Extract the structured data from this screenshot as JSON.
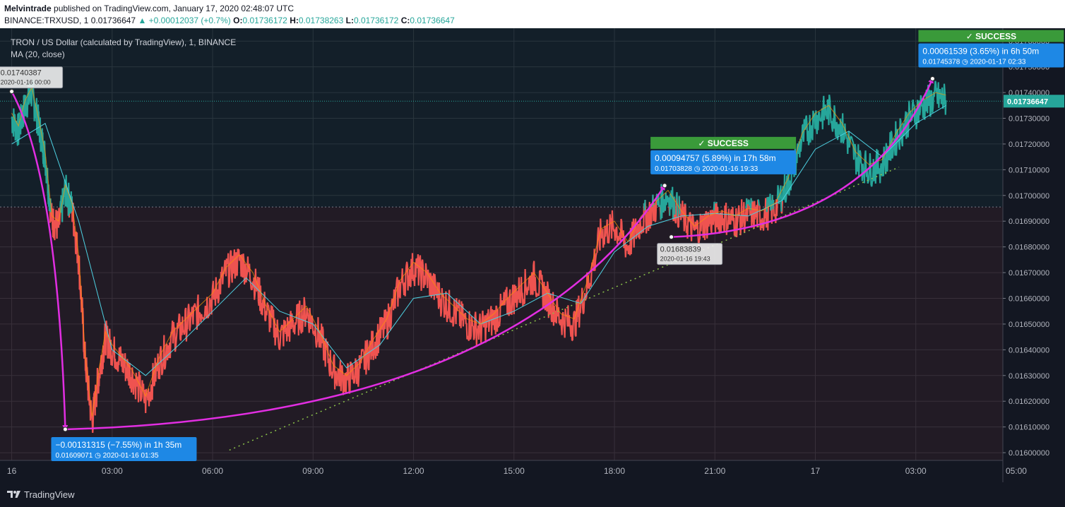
{
  "header": {
    "author": "Melvintrade",
    "published": "published on TradingView.com, January 17, 2020 02:48:07 UTC",
    "symbol": "BINANCE:TRXUSD, 1",
    "last": "0.01736647",
    "change": "▲ +0.00012037 (+0.7%)",
    "o_label": "O:",
    "o": "0.01736172",
    "h_label": "H:",
    "h": "0.01738263",
    "l_label": "L:",
    "l": "0.01736172",
    "c_label": "C:",
    "c": "0.01736647"
  },
  "legend": {
    "title": "TRON / US Dollar (calculated by TradingView), 1, BINANCE",
    "ma": "MA (20, close)"
  },
  "footer": {
    "brand": "TradingView",
    "logo_icon": "tradingview-logo-icon"
  },
  "colors": {
    "background": "#131722",
    "up": "#26a69a",
    "down": "#ef5350",
    "arrow": "#e22ee2",
    "ma_blue": "#4dd0e1",
    "ma_orange": "#ff9800",
    "success": "#3a9a3a",
    "measure": "#1e88e5",
    "trend": "#8bc34a"
  },
  "chart_data": {
    "type": "line",
    "x_ticks": [
      "16",
      "03:00",
      "06:00",
      "09:00",
      "12:00",
      "15:00",
      "18:00",
      "21:00",
      "17",
      "03:00",
      "05:00"
    ],
    "y_ticks": [
      "0.01760000",
      "0.01750000",
      "0.01740000",
      "0.01730000",
      "0.01720000",
      "0.01710000",
      "0.01700000",
      "0.01690000",
      "0.01680000",
      "0.01670000",
      "0.01660000",
      "0.01650000",
      "0.01640000",
      "0.01630000",
      "0.01620000",
      "0.01610000",
      "0.01600000"
    ],
    "ylim": [
      0.01597,
      0.01765
    ],
    "xlim_hours": [
      -0.35,
      29.6
    ],
    "last_price": "0.01736647",
    "reference_price": 0.016955,
    "series": [
      {
        "name": "TRX/USD",
        "points": [
          [
            0.0,
            0.0173
          ],
          [
            0.2,
            0.01725
          ],
          [
            0.4,
            0.01735
          ],
          [
            0.6,
            0.0174
          ],
          [
            0.8,
            0.01728
          ],
          [
            1.0,
            0.01715
          ],
          [
            1.2,
            0.0169
          ],
          [
            1.4,
            0.01688
          ],
          [
            1.6,
            0.01702
          ],
          [
            1.8,
            0.01695
          ],
          [
            2.0,
            0.01675
          ],
          [
            2.2,
            0.01635
          ],
          [
            2.4,
            0.01612
          ],
          [
            2.6,
            0.0163
          ],
          [
            2.8,
            0.01645
          ],
          [
            3.0,
            0.0164
          ],
          [
            3.3,
            0.01635
          ],
          [
            3.6,
            0.0163
          ],
          [
            4.0,
            0.0162
          ],
          [
            4.4,
            0.01635
          ],
          [
            4.8,
            0.01645
          ],
          [
            5.2,
            0.0165
          ],
          [
            5.6,
            0.01655
          ],
          [
            6.0,
            0.0166
          ],
          [
            6.4,
            0.0167
          ],
          [
            6.8,
            0.01675
          ],
          [
            7.2,
            0.01668
          ],
          [
            7.6,
            0.01655
          ],
          [
            8.0,
            0.01645
          ],
          [
            8.4,
            0.0165
          ],
          [
            8.8,
            0.01655
          ],
          [
            9.2,
            0.01645
          ],
          [
            9.6,
            0.01632
          ],
          [
            10.0,
            0.01628
          ],
          [
            10.4,
            0.01633
          ],
          [
            10.8,
            0.01642
          ],
          [
            11.2,
            0.0165
          ],
          [
            11.6,
            0.01665
          ],
          [
            12.0,
            0.01672
          ],
          [
            12.4,
            0.01668
          ],
          [
            12.8,
            0.0166
          ],
          [
            13.2,
            0.01655
          ],
          [
            13.6,
            0.0165
          ],
          [
            14.0,
            0.01648
          ],
          [
            14.4,
            0.01652
          ],
          [
            14.8,
            0.01658
          ],
          [
            15.2,
            0.01663
          ],
          [
            15.6,
            0.01668
          ],
          [
            16.0,
            0.0166
          ],
          [
            16.4,
            0.01652
          ],
          [
            16.8,
            0.0165
          ],
          [
            17.2,
            0.01665
          ],
          [
            17.6,
            0.01685
          ],
          [
            18.0,
            0.01688
          ],
          [
            18.4,
            0.0168
          ],
          [
            18.8,
            0.0169
          ],
          [
            19.2,
            0.01695
          ],
          [
            19.6,
            0.017
          ],
          [
            20.0,
            0.01692
          ],
          [
            20.4,
            0.01686
          ],
          [
            20.8,
            0.0169
          ],
          [
            21.2,
            0.01692
          ],
          [
            21.6,
            0.0169
          ],
          [
            22.0,
            0.01693
          ],
          [
            22.4,
            0.01692
          ],
          [
            22.8,
            0.01695
          ],
          [
            23.2,
            0.01705
          ],
          [
            23.6,
            0.01722
          ],
          [
            24.0,
            0.0173
          ],
          [
            24.4,
            0.01733
          ],
          [
            24.8,
            0.01726
          ],
          [
            25.2,
            0.01715
          ],
          [
            25.6,
            0.0171
          ],
          [
            26.0,
            0.01712
          ],
          [
            26.4,
            0.01722
          ],
          [
            26.8,
            0.0173
          ],
          [
            27.2,
            0.01735
          ],
          [
            27.6,
            0.01738
          ],
          [
            27.9,
            0.01737
          ]
        ]
      },
      {
        "name": "",
        "points": [
          [
            0.0,
            0.0172
          ],
          [
            1.0,
            0.01728
          ],
          [
            2.0,
            0.0169
          ],
          [
            3.0,
            0.0164
          ],
          [
            4.0,
            0.0163
          ],
          [
            5.0,
            0.01642
          ],
          [
            6.0,
            0.01655
          ],
          [
            7.0,
            0.01668
          ],
          [
            8.0,
            0.01655
          ],
          [
            9.0,
            0.0165
          ],
          [
            10.0,
            0.01633
          ],
          [
            11.0,
            0.01642
          ],
          [
            12.0,
            0.0166
          ],
          [
            13.0,
            0.01662
          ],
          [
            14.0,
            0.0165
          ],
          [
            15.0,
            0.01655
          ],
          [
            16.0,
            0.01662
          ],
          [
            17.0,
            0.01658
          ],
          [
            18.0,
            0.01678
          ],
          [
            19.0,
            0.01688
          ],
          [
            20.0,
            0.01692
          ],
          [
            21.0,
            0.01693
          ],
          [
            22.0,
            0.01692
          ],
          [
            23.0,
            0.01698
          ],
          [
            24.0,
            0.01718
          ],
          [
            25.0,
            0.01725
          ],
          [
            26.0,
            0.01715
          ],
          [
            27.0,
            0.01728
          ],
          [
            27.9,
            0.01735
          ]
        ]
      }
    ],
    "arrows": [
      {
        "from": [
          0.0,
          0.01740387
        ],
        "to": [
          1.6,
          0.01609071
        ],
        "bend": "down"
      },
      {
        "from": [
          1.6,
          0.01609071
        ],
        "to": [
          19.5,
          0.01703828
        ],
        "bend": "curve"
      },
      {
        "from": [
          19.7,
          0.01683839
        ],
        "to": [
          27.5,
          0.01745378
        ],
        "bend": "curve"
      }
    ],
    "trendline": {
      "from": [
        6.5,
        0.01601
      ],
      "to": [
        26.5,
        0.01711
      ]
    },
    "price_labels": [
      {
        "value": "0.01740387",
        "date": "2020-01-16 00:00",
        "x": 0.0,
        "y": 0.01740387,
        "place": "above"
      },
      {
        "value": "0.01683839",
        "date": "2020-01-16 19:43",
        "x": 19.7,
        "y": 0.01683839,
        "place": "below"
      }
    ],
    "measures": [
      {
        "text": "−0.00131315 (−7.55%) in 1h 35m",
        "price": "0.01609071",
        "date": "2020-01-16  01:35",
        "x": 1.6,
        "y": 0.01609071,
        "place": "below",
        "success": ""
      },
      {
        "text": "0.00094757 (5.89%) in 17h 58m",
        "price": "0.01703828",
        "date": "2020-01-16  19:33",
        "x": 19.5,
        "y": 0.01703828,
        "place": "above",
        "success": "✓ SUCCESS"
      },
      {
        "text": "0.00061539 (3.65%) in 6h 50m",
        "price": "0.01745378",
        "date": "2020-01-17  02:33",
        "x": 27.5,
        "y": 0.01745378,
        "place": "above",
        "success": "✓ SUCCESS"
      }
    ]
  }
}
